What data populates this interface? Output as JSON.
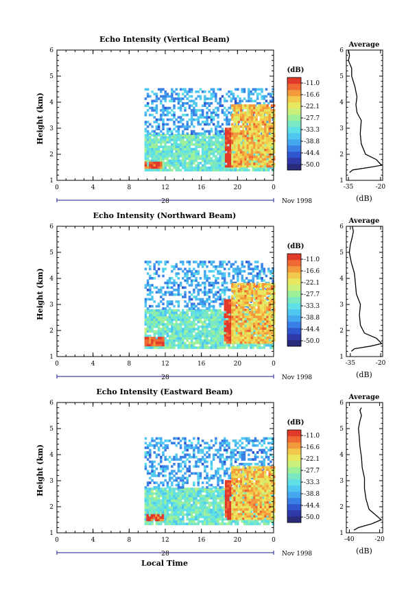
{
  "figure": {
    "xlabel": "Local Time",
    "date_label": "Nov 1998",
    "day_label": "28",
    "colorbar_unit": "(dB)",
    "colorbar_ticks": [
      "-11.0",
      "-16.6",
      "-22.1",
      "-27.7",
      "-33.3",
      "-38.8",
      "-44.4",
      "-50.0"
    ],
    "colorscale": [
      "#2a2a7a",
      "#2f3aa8",
      "#2f55cf",
      "#3a7fe6",
      "#45a7ee",
      "#4fc7f0",
      "#5fe0e6",
      "#7ae8c2",
      "#9df09a",
      "#c8f07a",
      "#e8e860",
      "#f2c94a",
      "#f59a3c",
      "#ef6a32",
      "#e23a2a"
    ]
  },
  "chart_data": [
    {
      "type": "heatmap",
      "title": "Echo Intensity (Vertical Beam)",
      "xlabel": "",
      "ylabel": "Height (km)",
      "xlim": [
        0,
        24
      ],
      "ylim": [
        1,
        6
      ],
      "xticks": [
        "0",
        "4",
        "8",
        "12",
        "16",
        "20",
        "0"
      ],
      "yticks": [
        "1",
        "2",
        "3",
        "4",
        "5",
        "6"
      ],
      "clim": [
        -50.0,
        -11.0
      ],
      "features": [
        {
          "kind": "band",
          "x": [
            9.7,
            24
          ],
          "y": [
            1.35,
            2.75
          ],
          "value": -31
        },
        {
          "kind": "band",
          "x": [
            9.7,
            24
          ],
          "y": [
            2.75,
            4.5
          ],
          "value": -38
        },
        {
          "kind": "band",
          "x": [
            9.7,
            11.5
          ],
          "y": [
            1.45,
            1.65
          ],
          "value": -13
        },
        {
          "kind": "band",
          "x": [
            18.6,
            19.3
          ],
          "y": [
            1.5,
            3.0
          ],
          "value": -11
        },
        {
          "kind": "band",
          "x": [
            19.3,
            24
          ],
          "y": [
            1.5,
            3.9
          ],
          "value": -20
        }
      ]
    },
    {
      "type": "line",
      "title": "Average",
      "xlabel": "(dB)",
      "ylabel": "",
      "xlim": [
        -36,
        -19
      ],
      "ylim": [
        1,
        6
      ],
      "xticks": [
        "-35",
        "-20"
      ],
      "yticks": [
        "1",
        "2",
        "3",
        "4",
        "5",
        "6"
      ],
      "x": [
        -34.5,
        -33,
        -25,
        -19.5,
        -22,
        -27,
        -29,
        -29.5,
        -29,
        -31,
        -31.5,
        -31,
        -32,
        -33.5,
        -33.5,
        -35,
        -34.5,
        -35
      ],
      "y": [
        1.3,
        1.4,
        1.5,
        1.58,
        1.8,
        2.0,
        2.4,
        2.8,
        3.3,
        3.6,
        3.9,
        4.2,
        4.6,
        5.0,
        5.3,
        5.6,
        5.8,
        6.0
      ]
    },
    {
      "type": "heatmap",
      "title": "Echo Intensity (Northward Beam)",
      "xlabel": "",
      "ylabel": "Height (km)",
      "xlim": [
        0,
        24
      ],
      "ylim": [
        1,
        6
      ],
      "xticks": [
        "0",
        "4",
        "8",
        "12",
        "16",
        "20",
        "0"
      ],
      "yticks": [
        "1",
        "2",
        "3",
        "4",
        "5",
        "6"
      ],
      "clim": [
        -50.0,
        -11.0
      ],
      "features": [
        {
          "kind": "band",
          "x": [
            9.7,
            24
          ],
          "y": [
            1.3,
            2.8
          ],
          "value": -31
        },
        {
          "kind": "band",
          "x": [
            9.7,
            24
          ],
          "y": [
            2.8,
            4.6
          ],
          "value": -38
        },
        {
          "kind": "band",
          "x": [
            9.7,
            11.8
          ],
          "y": [
            1.4,
            1.7
          ],
          "value": -13
        },
        {
          "kind": "band",
          "x": [
            18.5,
            19.3
          ],
          "y": [
            1.5,
            3.2
          ],
          "value": -11
        },
        {
          "kind": "band",
          "x": [
            19.3,
            24
          ],
          "y": [
            1.5,
            3.8
          ],
          "value": -20
        }
      ]
    },
    {
      "type": "line",
      "title": "Average",
      "xlabel": "(dB)",
      "ylabel": "",
      "xlim": [
        -37,
        -19
      ],
      "ylim": [
        1,
        6
      ],
      "xticks": [
        "-35",
        "-20"
      ],
      "yticks": [
        "1",
        "2",
        "3",
        "4",
        "5",
        "6"
      ],
      "x": [
        -34.5,
        -33,
        -25,
        -19.5,
        -22,
        -28,
        -30,
        -30.5,
        -30,
        -32,
        -32.5,
        -33,
        -34.5,
        -35.5,
        -35,
        -34,
        -33.5,
        -34
      ],
      "y": [
        1.2,
        1.3,
        1.4,
        1.5,
        1.7,
        1.9,
        2.2,
        2.6,
        3.0,
        3.4,
        3.8,
        4.2,
        4.6,
        5.0,
        5.3,
        5.6,
        5.8,
        6.0
      ]
    },
    {
      "type": "heatmap",
      "title": "Echo Intensity (Eastward Beam)",
      "xlabel": "",
      "ylabel": "Height (km)",
      "xlim": [
        0,
        24
      ],
      "ylim": [
        1,
        6
      ],
      "xticks": [
        "0",
        "4",
        "8",
        "12",
        "16",
        "20",
        "0"
      ],
      "yticks": [
        "1",
        "2",
        "3",
        "4",
        "5",
        "6"
      ],
      "clim": [
        -50.0,
        -11.0
      ],
      "features": [
        {
          "kind": "band",
          "x": [
            9.7,
            24
          ],
          "y": [
            1.3,
            2.7
          ],
          "value": -31
        },
        {
          "kind": "band",
          "x": [
            9.7,
            24
          ],
          "y": [
            2.7,
            4.6
          ],
          "value": -38
        },
        {
          "kind": "band",
          "x": [
            9.9,
            11.8
          ],
          "y": [
            1.45,
            1.7
          ],
          "value": -13
        },
        {
          "kind": "band",
          "x": [
            18.6,
            19.3
          ],
          "y": [
            1.5,
            3.0
          ],
          "value": -11
        },
        {
          "kind": "band",
          "x": [
            19.3,
            24
          ],
          "y": [
            1.5,
            3.5
          ],
          "value": -20
        }
      ]
    },
    {
      "type": "line",
      "title": "Average",
      "xlabel": "(dB)",
      "ylabel": "",
      "xlim": [
        -42,
        -18
      ],
      "ylim": [
        1,
        6
      ],
      "xticks": [
        "-40",
        "-20"
      ],
      "yticks": [
        "1",
        "2",
        "3",
        "4",
        "5",
        "6"
      ],
      "x": [
        -37,
        -34,
        -25,
        -19,
        -23,
        -27,
        -29,
        -30,
        -30,
        -31.5,
        -32,
        -33,
        -33.5,
        -34,
        -33,
        -32,
        -33,
        -32
      ],
      "y": [
        1.1,
        1.2,
        1.35,
        1.5,
        1.7,
        1.9,
        2.3,
        2.7,
        3.1,
        3.5,
        3.9,
        4.3,
        4.7,
        5.0,
        5.3,
        5.5,
        5.7,
        5.8
      ]
    }
  ]
}
